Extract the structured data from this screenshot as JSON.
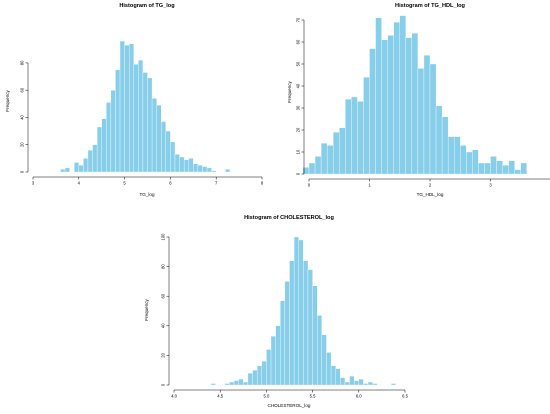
{
  "colors": {
    "bar": "#87CEEB",
    "bar_border": "#ffffff",
    "axis": "#000000"
  },
  "chart_data": [
    {
      "type": "bar",
      "title": "Histogram of TG_log",
      "xlabel": "TG_log",
      "ylabel": "Frequency",
      "xlim": [
        3,
        8
      ],
      "ylim": [
        0,
        110
      ],
      "bin_width": 0.1,
      "x_ticks": [
        "3",
        "4",
        "5",
        "6",
        "7",
        "8"
      ],
      "y_ticks": [
        "0",
        "20",
        "40",
        "60",
        "80"
      ],
      "bin_starts": [
        3.6,
        3.7,
        3.8,
        3.9,
        4.0,
        4.1,
        4.2,
        4.3,
        4.4,
        4.5,
        4.6,
        4.7,
        4.8,
        4.9,
        5.0,
        5.1,
        5.2,
        5.3,
        5.4,
        5.5,
        5.6,
        5.7,
        5.8,
        5.9,
        6.0,
        6.1,
        6.2,
        6.3,
        6.4,
        6.5,
        6.6,
        6.7,
        6.8,
        6.9,
        7.0,
        7.1,
        7.2
      ],
      "values": [
        2,
        3,
        0,
        7,
        5,
        10,
        16,
        20,
        33,
        39,
        51,
        60,
        75,
        96,
        93,
        94,
        79,
        82,
        73,
        69,
        54,
        49,
        37,
        30,
        22,
        13,
        11,
        9,
        10,
        6,
        5,
        4,
        3,
        1,
        0,
        0,
        2
      ],
      "grid": false
    },
    {
      "type": "bar",
      "title": "Histogram of TG_HDL_log",
      "xlabel": "TG_HDL_log",
      "ylabel": "Frequency",
      "xlim": [
        0,
        4
      ],
      "ylim": [
        0,
        70
      ],
      "bin_width": 0.1,
      "x_ticks": [
        "0",
        "1",
        "2",
        "3",
        "4"
      ],
      "y_ticks": [
        "0",
        "10",
        "20",
        "30",
        "40",
        "50",
        "60",
        "70"
      ],
      "bin_starts": [
        -0.1,
        0.0,
        0.1,
        0.2,
        0.3,
        0.4,
        0.5,
        0.6,
        0.7,
        0.8,
        0.9,
        1.0,
        1.1,
        1.2,
        1.3,
        1.4,
        1.5,
        1.6,
        1.7,
        1.8,
        1.9,
        2.0,
        2.1,
        2.2,
        2.3,
        2.4,
        2.5,
        2.6,
        2.7,
        2.8,
        2.9,
        3.0,
        3.1,
        3.2,
        3.3,
        3.4,
        3.5
      ],
      "values": [
        3,
        5,
        8,
        14,
        13,
        19,
        21,
        34,
        35,
        33,
        44,
        57,
        71,
        61,
        63,
        69,
        72,
        62,
        64,
        48,
        54,
        50,
        31,
        26,
        17,
        17,
        13,
        10,
        11,
        5,
        5,
        8,
        6,
        4,
        6,
        2,
        5
      ],
      "grid": false
    },
    {
      "type": "bar",
      "title": "Histogram of CHOLESTEROL_log",
      "xlabel": "CHOLESTEROL_log",
      "ylabel": "Frequency",
      "xlim": [
        4.0,
        6.5
      ],
      "ylim": [
        0,
        100
      ],
      "bin_width": 0.05,
      "x_ticks": [
        "4.0",
        "4.5",
        "5.0",
        "5.5",
        "6.0",
        "6.5"
      ],
      "y_ticks": [
        "0",
        "20",
        "40",
        "60",
        "80",
        "100"
      ],
      "bin_starts": [
        4.3,
        4.35,
        4.4,
        4.45,
        4.5,
        4.55,
        4.6,
        4.65,
        4.7,
        4.75,
        4.8,
        4.85,
        4.9,
        4.95,
        5.0,
        5.05,
        5.1,
        5.15,
        5.2,
        5.25,
        5.3,
        5.35,
        5.4,
        5.45,
        5.5,
        5.55,
        5.6,
        5.65,
        5.7,
        5.75,
        5.8,
        5.85,
        5.9,
        5.95,
        6.0,
        6.05,
        6.1,
        6.15,
        6.2,
        6.25,
        6.3,
        6.35
      ],
      "values": [
        0,
        0,
        1,
        0,
        0,
        1,
        2,
        3,
        4,
        2,
        8,
        10,
        13,
        16,
        24,
        33,
        40,
        57,
        70,
        84,
        100,
        98,
        84,
        78,
        67,
        47,
        34,
        22,
        13,
        11,
        5,
        2,
        6,
        3,
        4,
        1,
        2,
        1,
        0,
        0,
        0,
        1
      ],
      "grid": false
    }
  ]
}
